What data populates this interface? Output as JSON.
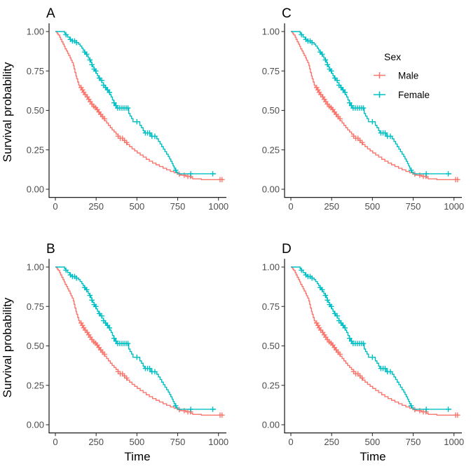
{
  "figure": {
    "background": "#ffffff",
    "axis_color": "#000000",
    "tick_color": "#333333",
    "tick_label_color": "#4d4d4d"
  },
  "chart_data": {
    "type": "line",
    "subtype": "kaplan-meier-survival-steps",
    "title": "",
    "xlabel": "Time",
    "ylabel": "Survival probability",
    "xlim": [
      0,
      1050
    ],
    "ylim": [
      0,
      1
    ],
    "grid": false,
    "x_ticks": [
      {
        "v": 0,
        "label": "0"
      },
      {
        "v": 250,
        "label": "250"
      },
      {
        "v": 500,
        "label": "500"
      },
      {
        "v": 750,
        "label": "750"
      },
      {
        "v": 1000,
        "label": "1000"
      }
    ],
    "y_ticks": [
      {
        "v": 0.0,
        "label": "0.00"
      },
      {
        "v": 0.25,
        "label": "0.25"
      },
      {
        "v": 0.5,
        "label": "0.50"
      },
      {
        "v": 0.75,
        "label": "0.75"
      },
      {
        "v": 1.0,
        "label": "1.00"
      }
    ],
    "legend": {
      "title": "Sex",
      "position": "inside-top-right-of-panel-C",
      "entries": [
        {
          "label": "Male",
          "color": "#F8766D"
        },
        {
          "label": "Female",
          "color": "#00BFC4"
        }
      ]
    },
    "panels": [
      {
        "label": "A",
        "row": 0,
        "col": 0,
        "show_y_title": true,
        "show_x_title": false,
        "show_legend": false
      },
      {
        "label": "C",
        "row": 0,
        "col": 1,
        "show_y_title": false,
        "show_x_title": false,
        "show_legend": true
      },
      {
        "label": "B",
        "row": 1,
        "col": 0,
        "show_y_title": true,
        "show_x_title": true,
        "show_legend": false
      },
      {
        "label": "D",
        "row": 1,
        "col": 1,
        "show_y_title": false,
        "show_x_title": true,
        "show_legend": false
      }
    ],
    "series": [
      {
        "name": "Male",
        "color": "#F8766D",
        "start": [
          0,
          1.0
        ],
        "end_time": 1025,
        "steps": [
          [
            9,
            0.993
          ],
          [
            13,
            0.985
          ],
          [
            18,
            0.978
          ],
          [
            26,
            0.964
          ],
          [
            32,
            0.95
          ],
          [
            39,
            0.935
          ],
          [
            47,
            0.92
          ],
          [
            54,
            0.906
          ],
          [
            60,
            0.89
          ],
          [
            68,
            0.877
          ],
          [
            75,
            0.862
          ],
          [
            82,
            0.848
          ],
          [
            90,
            0.833
          ],
          [
            96,
            0.818
          ],
          [
            103,
            0.803
          ],
          [
            110,
            0.785
          ],
          [
            115,
            0.763
          ],
          [
            120,
            0.74
          ],
          [
            126,
            0.718
          ],
          [
            131,
            0.7
          ],
          [
            137,
            0.68
          ],
          [
            143,
            0.66
          ],
          [
            150,
            0.645
          ],
          [
            160,
            0.63
          ],
          [
            170,
            0.615
          ],
          [
            180,
            0.6
          ],
          [
            192,
            0.585
          ],
          [
            202,
            0.57
          ],
          [
            212,
            0.555
          ],
          [
            222,
            0.54
          ],
          [
            232,
            0.525
          ],
          [
            242,
            0.518
          ],
          [
            252,
            0.505
          ],
          [
            262,
            0.49
          ],
          [
            272,
            0.475
          ],
          [
            282,
            0.46
          ],
          [
            292,
            0.447
          ],
          [
            303,
            0.434
          ],
          [
            314,
            0.42
          ],
          [
            325,
            0.405
          ],
          [
            337,
            0.39
          ],
          [
            348,
            0.376
          ],
          [
            360,
            0.363
          ],
          [
            372,
            0.35
          ],
          [
            384,
            0.337
          ],
          [
            398,
            0.323
          ],
          [
            412,
            0.31
          ],
          [
            426,
            0.296
          ],
          [
            440,
            0.283
          ],
          [
            455,
            0.27
          ],
          [
            470,
            0.256
          ],
          [
            486,
            0.243
          ],
          [
            502,
            0.23
          ],
          [
            520,
            0.217
          ],
          [
            538,
            0.204
          ],
          [
            557,
            0.19
          ],
          [
            576,
            0.178
          ],
          [
            596,
            0.166
          ],
          [
            617,
            0.155
          ],
          [
            638,
            0.144
          ],
          [
            660,
            0.133
          ],
          [
            682,
            0.123
          ],
          [
            705,
            0.113
          ],
          [
            728,
            0.104
          ],
          [
            750,
            0.096
          ],
          [
            765,
            0.089
          ],
          [
            800,
            0.082
          ],
          [
            830,
            0.073
          ],
          [
            842,
            0.066
          ],
          [
            895,
            0.061
          ]
        ],
        "censor_times": [
          158,
          166,
          174,
          183,
          196,
          205,
          214,
          224,
          236,
          246,
          257,
          267,
          278,
          290,
          301,
          385,
          398,
          411,
          424,
          437,
          760,
          790,
          812,
          828,
          1010,
          1022
        ]
      },
      {
        "name": "Female",
        "color": "#00BFC4",
        "start": [
          0,
          1.0
        ],
        "end_time": 985,
        "steps": [
          [
            57,
            0.99
          ],
          [
            63,
            0.98
          ],
          [
            75,
            0.965
          ],
          [
            88,
            0.95
          ],
          [
            100,
            0.94
          ],
          [
            130,
            0.93
          ],
          [
            142,
            0.92
          ],
          [
            152,
            0.908
          ],
          [
            162,
            0.895
          ],
          [
            170,
            0.882
          ],
          [
            178,
            0.87
          ],
          [
            186,
            0.856
          ],
          [
            194,
            0.845
          ],
          [
            202,
            0.832
          ],
          [
            210,
            0.82
          ],
          [
            218,
            0.805
          ],
          [
            224,
            0.79
          ],
          [
            230,
            0.776
          ],
          [
            237,
            0.762
          ],
          [
            243,
            0.75
          ],
          [
            250,
            0.735
          ],
          [
            258,
            0.72
          ],
          [
            266,
            0.705
          ],
          [
            276,
            0.69
          ],
          [
            285,
            0.676
          ],
          [
            295,
            0.66
          ],
          [
            305,
            0.645
          ],
          [
            315,
            0.63
          ],
          [
            326,
            0.614
          ],
          [
            334,
            0.6
          ],
          [
            342,
            0.585
          ],
          [
            350,
            0.566
          ],
          [
            358,
            0.548
          ],
          [
            366,
            0.53
          ],
          [
            374,
            0.515
          ],
          [
            450,
            0.48
          ],
          [
            458,
            0.464
          ],
          [
            467,
            0.448
          ],
          [
            476,
            0.428
          ],
          [
            518,
            0.405
          ],
          [
            528,
            0.39
          ],
          [
            538,
            0.372
          ],
          [
            545,
            0.357
          ],
          [
            585,
            0.336
          ],
          [
            622,
            0.32
          ],
          [
            632,
            0.303
          ],
          [
            642,
            0.287
          ],
          [
            652,
            0.27
          ],
          [
            662,
            0.254
          ],
          [
            672,
            0.238
          ],
          [
            682,
            0.222
          ],
          [
            692,
            0.207
          ],
          [
            700,
            0.192
          ],
          [
            708,
            0.177
          ],
          [
            716,
            0.162
          ],
          [
            722,
            0.148
          ],
          [
            728,
            0.134
          ],
          [
            735,
            0.12
          ],
          [
            742,
            0.108
          ],
          [
            752,
            0.098
          ]
        ],
        "censor_times": [
          65,
          92,
          105,
          118,
          130,
          180,
          192,
          212,
          224,
          238,
          248,
          270,
          284,
          295,
          308,
          320,
          332,
          360,
          372,
          382,
          395,
          408,
          421,
          434,
          445,
          500,
          552,
          565,
          578,
          592,
          610,
          738,
          830,
          965
        ]
      }
    ]
  }
}
